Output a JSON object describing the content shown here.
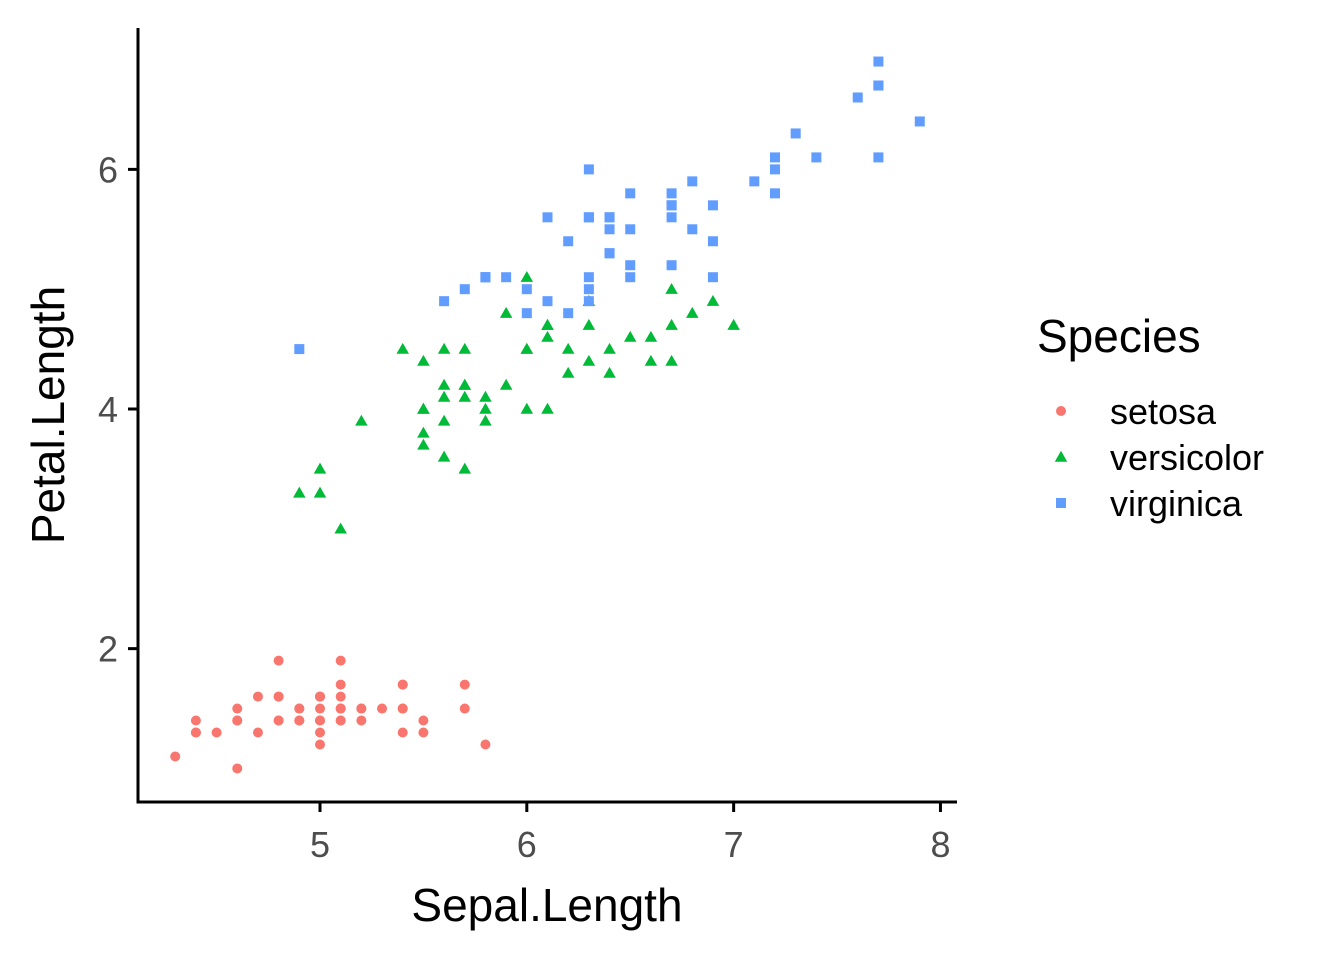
{
  "chart_data": {
    "type": "scatter",
    "xlabel": "Sepal.Length",
    "ylabel": "Petal.Length",
    "xlim": [
      4.12,
      8.08
    ],
    "ylim": [
      0.72,
      7.18
    ],
    "x_ticks": [
      5,
      6,
      7,
      8
    ],
    "y_ticks": [
      2,
      4,
      6
    ],
    "grid": false,
    "legend": {
      "title": "Species",
      "placement": "right"
    },
    "series": [
      {
        "name": "setosa",
        "color": "#F8766D",
        "shape": "circle",
        "points": [
          [
            5.1,
            1.4
          ],
          [
            4.9,
            1.4
          ],
          [
            4.7,
            1.3
          ],
          [
            4.6,
            1.5
          ],
          [
            5.0,
            1.4
          ],
          [
            5.4,
            1.7
          ],
          [
            4.6,
            1.4
          ],
          [
            5.0,
            1.5
          ],
          [
            4.4,
            1.4
          ],
          [
            4.9,
            1.5
          ],
          [
            5.4,
            1.5
          ],
          [
            4.8,
            1.6
          ],
          [
            4.8,
            1.4
          ],
          [
            4.3,
            1.1
          ],
          [
            5.8,
            1.2
          ],
          [
            5.7,
            1.5
          ],
          [
            5.4,
            1.3
          ],
          [
            5.1,
            1.4
          ],
          [
            5.7,
            1.7
          ],
          [
            5.1,
            1.5
          ],
          [
            5.4,
            1.7
          ],
          [
            5.1,
            1.5
          ],
          [
            4.6,
            1.0
          ],
          [
            5.1,
            1.7
          ],
          [
            4.8,
            1.9
          ],
          [
            5.0,
            1.6
          ],
          [
            5.0,
            1.6
          ],
          [
            5.2,
            1.5
          ],
          [
            5.2,
            1.4
          ],
          [
            4.7,
            1.6
          ],
          [
            4.8,
            1.6
          ],
          [
            5.4,
            1.5
          ],
          [
            5.2,
            1.5
          ],
          [
            5.5,
            1.4
          ],
          [
            4.9,
            1.5
          ],
          [
            5.0,
            1.2
          ],
          [
            5.5,
            1.3
          ],
          [
            4.9,
            1.4
          ],
          [
            4.4,
            1.3
          ],
          [
            5.1,
            1.5
          ],
          [
            5.0,
            1.3
          ],
          [
            4.5,
            1.3
          ],
          [
            4.4,
            1.3
          ],
          [
            5.0,
            1.6
          ],
          [
            5.1,
            1.9
          ],
          [
            4.8,
            1.4
          ],
          [
            5.1,
            1.6
          ],
          [
            4.6,
            1.4
          ],
          [
            5.3,
            1.5
          ],
          [
            5.0,
            1.4
          ]
        ]
      },
      {
        "name": "versicolor",
        "color": "#00BA38",
        "shape": "triangle",
        "points": [
          [
            7.0,
            4.7
          ],
          [
            6.4,
            4.5
          ],
          [
            6.9,
            4.9
          ],
          [
            5.5,
            4.0
          ],
          [
            6.5,
            4.6
          ],
          [
            5.7,
            4.5
          ],
          [
            6.3,
            4.7
          ],
          [
            4.9,
            3.3
          ],
          [
            6.6,
            4.6
          ],
          [
            5.2,
            3.9
          ],
          [
            5.0,
            3.5
          ],
          [
            5.9,
            4.2
          ],
          [
            6.0,
            4.0
          ],
          [
            6.1,
            4.7
          ],
          [
            5.6,
            3.6
          ],
          [
            6.7,
            4.4
          ],
          [
            5.6,
            4.5
          ],
          [
            5.8,
            4.1
          ],
          [
            6.2,
            4.5
          ],
          [
            5.6,
            3.9
          ],
          [
            5.9,
            4.8
          ],
          [
            6.1,
            4.0
          ],
          [
            6.3,
            4.9
          ],
          [
            6.1,
            4.7
          ],
          [
            6.4,
            4.3
          ],
          [
            6.6,
            4.4
          ],
          [
            6.8,
            4.8
          ],
          [
            6.7,
            5.0
          ],
          [
            6.0,
            4.5
          ],
          [
            5.7,
            3.5
          ],
          [
            5.5,
            3.8
          ],
          [
            5.5,
            3.7
          ],
          [
            5.8,
            3.9
          ],
          [
            6.0,
            5.1
          ],
          [
            5.4,
            4.5
          ],
          [
            6.0,
            4.5
          ],
          [
            6.7,
            4.7
          ],
          [
            6.3,
            4.4
          ],
          [
            5.6,
            4.1
          ],
          [
            5.5,
            4.0
          ],
          [
            5.5,
            4.4
          ],
          [
            6.1,
            4.6
          ],
          [
            5.8,
            4.0
          ],
          [
            5.0,
            3.3
          ],
          [
            5.6,
            4.2
          ],
          [
            5.7,
            4.2
          ],
          [
            5.7,
            4.2
          ],
          [
            6.2,
            4.3
          ],
          [
            5.1,
            3.0
          ],
          [
            5.7,
            4.1
          ]
        ]
      },
      {
        "name": "virginica",
        "color": "#619CFF",
        "shape": "square",
        "points": [
          [
            6.3,
            6.0
          ],
          [
            5.8,
            5.1
          ],
          [
            7.1,
            5.9
          ],
          [
            6.3,
            5.6
          ],
          [
            6.5,
            5.8
          ],
          [
            7.6,
            6.6
          ],
          [
            4.9,
            4.5
          ],
          [
            7.3,
            6.3
          ],
          [
            6.7,
            5.8
          ],
          [
            7.2,
            6.1
          ],
          [
            6.5,
            5.1
          ],
          [
            6.4,
            5.3
          ],
          [
            6.8,
            5.5
          ],
          [
            5.7,
            5.0
          ],
          [
            5.8,
            5.1
          ],
          [
            6.4,
            5.3
          ],
          [
            6.5,
            5.5
          ],
          [
            7.7,
            6.7
          ],
          [
            7.7,
            6.9
          ],
          [
            6.0,
            5.0
          ],
          [
            6.9,
            5.7
          ],
          [
            5.6,
            4.9
          ],
          [
            7.7,
            6.7
          ],
          [
            6.3,
            4.9
          ],
          [
            6.7,
            5.7
          ],
          [
            7.2,
            6.0
          ],
          [
            6.2,
            4.8
          ],
          [
            6.1,
            4.9
          ],
          [
            6.4,
            5.6
          ],
          [
            7.2,
            5.8
          ],
          [
            7.4,
            6.1
          ],
          [
            7.9,
            6.4
          ],
          [
            6.4,
            5.6
          ],
          [
            6.3,
            5.1
          ],
          [
            6.1,
            5.6
          ],
          [
            7.7,
            6.1
          ],
          [
            6.3,
            5.6
          ],
          [
            6.4,
            5.5
          ],
          [
            6.0,
            4.8
          ],
          [
            6.9,
            5.4
          ],
          [
            6.7,
            5.6
          ],
          [
            6.9,
            5.1
          ],
          [
            5.8,
            5.1
          ],
          [
            6.8,
            5.9
          ],
          [
            6.7,
            5.7
          ],
          [
            6.7,
            5.2
          ],
          [
            6.3,
            5.0
          ],
          [
            6.5,
            5.2
          ],
          [
            6.2,
            5.4
          ],
          [
            5.9,
            5.1
          ]
        ]
      }
    ]
  }
}
